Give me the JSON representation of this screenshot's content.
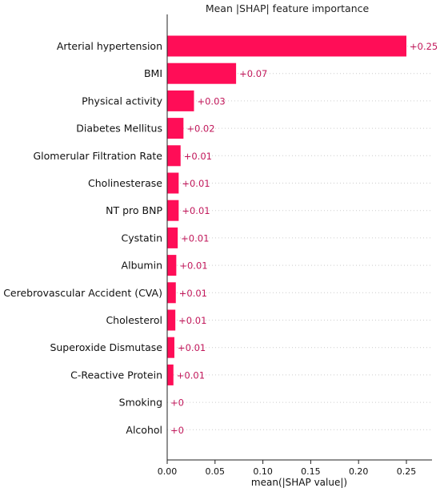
{
  "chart_data": {
    "type": "bar",
    "orientation": "horizontal",
    "title": "Mean |SHAP| feature importance",
    "xlabel": "mean(|SHAP value|)",
    "ylabel": "",
    "xlim": [
      0,
      0.27
    ],
    "xticks": [
      "0.00",
      "0.05",
      "0.10",
      "0.15",
      "0.20",
      "0.25"
    ],
    "grid": "horizontal dotted",
    "categories": [
      "Arterial hypertension",
      "BMI",
      "Physical activity",
      "Diabetes Mellitus",
      "Glomerular Filtration Rate",
      "Cholinesterase",
      "NT pro BNP",
      "Cystatin",
      "Albumin",
      "Cerebrovascular Accident (CVA)",
      "Cholesterol",
      "Superoxide Dismutase",
      "C-Reactive Protein",
      "Smoking",
      "Alcohol"
    ],
    "values": [
      0.25,
      0.072,
      0.028,
      0.017,
      0.014,
      0.012,
      0.012,
      0.011,
      0.0095,
      0.009,
      0.0085,
      0.0075,
      0.0065,
      0.0,
      0.0
    ],
    "value_labels": [
      "+0.25",
      "+0.07",
      "+0.03",
      "+0.02",
      "+0.01",
      "+0.01",
      "+0.01",
      "+0.01",
      "+0.01",
      "+0.01",
      "+0.01",
      "+0.01",
      "+0.01",
      "+0",
      "+0"
    ],
    "bar_color": "#ff0d57",
    "label_color": "#c2185b"
  }
}
